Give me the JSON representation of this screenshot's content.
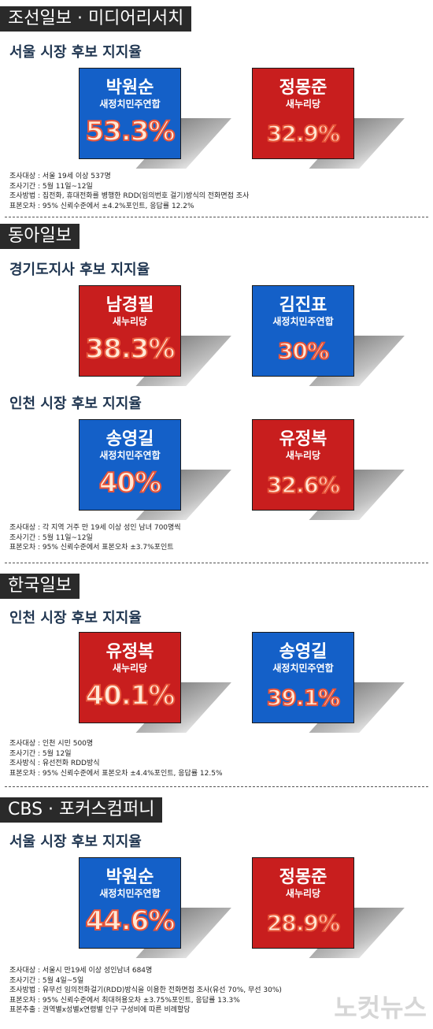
{
  "sections": [
    {
      "header": "조선일보 · 미디어리서치",
      "polls": [
        {
          "title": "서울 시장 후보 지지율",
          "candidates": [
            {
              "name": "박원순",
              "party": "새정치민주연합",
              "pct": "53.3%",
              "value": 53.3,
              "color": "#1460c8"
            },
            {
              "name": "정몽준",
              "party": "새누리당",
              "pct": "32.9%",
              "value": 32.9,
              "color": "#c81e1e"
            }
          ]
        }
      ],
      "notes": [
        "조사대상 : 서울 19세 이상 537명",
        "조사기간 : 5월 11일~12일",
        "조사방법 : 집전화, 휴대전화를 병행한 RDD(임의번호 걸기)방식의 전화면접 조사",
        "표본오차 : 95% 신뢰수준에서 ±4.2%포인트, 응답률 12.2%"
      ]
    },
    {
      "header": "동아일보",
      "polls": [
        {
          "title": "경기도지사 후보 지지율",
          "candidates": [
            {
              "name": "남경필",
              "party": "새누리당",
              "pct": "38.3%",
              "value": 38.3,
              "color": "#c81e1e"
            },
            {
              "name": "김진표",
              "party": "새정치민주연합",
              "pct": "30%",
              "value": 30,
              "color": "#1460c8"
            }
          ]
        },
        {
          "title": "인천 시장 후보 지지율",
          "candidates": [
            {
              "name": "송영길",
              "party": "새정치민주연합",
              "pct": "40%",
              "value": 40,
              "color": "#1460c8"
            },
            {
              "name": "유정복",
              "party": "새누리당",
              "pct": "32.6%",
              "value": 32.6,
              "color": "#c81e1e"
            }
          ]
        }
      ],
      "notes": [
        "조사대상 : 각 지역 거주 만 19세 이상 성인 남녀 700명씩",
        "조사기간 : 5월 11일~12일",
        "표본오차 : 95% 신뢰수준에서 표본오차 ±3.7%포인트"
      ]
    },
    {
      "header": "한국일보",
      "polls": [
        {
          "title": "인천 시장 후보 지지율",
          "candidates": [
            {
              "name": "유정복",
              "party": "새누리당",
              "pct": "40.1%",
              "value": 40.1,
              "color": "#c81e1e"
            },
            {
              "name": "송영길",
              "party": "새정치민주연합",
              "pct": "39.1%",
              "value": 39.1,
              "color": "#1460c8"
            }
          ]
        }
      ],
      "notes": [
        "조사대상 : 인천 시민 500명",
        "조사기간 : 5월 12일",
        "조사방식 : 유선전화 RDD방식",
        "표본오차 : 95% 신뢰수준에서 표본오차 ±4.4%포인트, 응답률 12.5%"
      ]
    },
    {
      "header": "CBS · 포커스컴퍼니",
      "polls": [
        {
          "title": "서울 시장 후보 지지율",
          "candidates": [
            {
              "name": "박원순",
              "party": "새정치민주연합",
              "pct": "44.6%",
              "value": 44.6,
              "color": "#1460c8"
            },
            {
              "name": "정몽준",
              "party": "새누리당",
              "pct": "28.9%",
              "value": 28.9,
              "color": "#c81e1e"
            }
          ]
        }
      ],
      "notes": [
        "조사대상 : 서울시 만19세 이상 성인남녀 684명",
        "조사기간 : 5월 4일~5일",
        "조사방법 : 유무선 임의전화걸기(RDD)방식을 이용한 전화면접 조사(유선 70%, 무선 30%)",
        "표본오차 : 95% 신뢰수준에서 최대허용오차 ±3.75%포인트, 응답률 13.3%",
        "표본추출 : 권역별x성별x연령별 인구 구성비에 따른 비례할당"
      ]
    }
  ],
  "watermark": "노컷뉴스",
  "chart_data": {
    "type": "table",
    "rows": [
      {
        "source": "조선일보 · 미디어리서치",
        "race": "서울 시장",
        "candidate": "박원순",
        "party": "새정치민주연합",
        "value": 53.3
      },
      {
        "source": "조선일보 · 미디어리서치",
        "race": "서울 시장",
        "candidate": "정몽준",
        "party": "새누리당",
        "value": 32.9
      },
      {
        "source": "동아일보",
        "race": "경기도지사",
        "candidate": "남경필",
        "party": "새누리당",
        "value": 38.3
      },
      {
        "source": "동아일보",
        "race": "경기도지사",
        "candidate": "김진표",
        "party": "새정치민주연합",
        "value": 30
      },
      {
        "source": "동아일보",
        "race": "인천 시장",
        "candidate": "송영길",
        "party": "새정치민주연합",
        "value": 40
      },
      {
        "source": "동아일보",
        "race": "인천 시장",
        "candidate": "유정복",
        "party": "새누리당",
        "value": 32.6
      },
      {
        "source": "한국일보",
        "race": "인천 시장",
        "candidate": "유정복",
        "party": "새누리당",
        "value": 40.1
      },
      {
        "source": "한국일보",
        "race": "인천 시장",
        "candidate": "송영길",
        "party": "새정치민주연합",
        "value": 39.1
      },
      {
        "source": "CBS · 포커스컴퍼니",
        "race": "서울 시장",
        "candidate": "박원순",
        "party": "새정치민주연합",
        "value": 44.6
      },
      {
        "source": "CBS · 포커스컴퍼니",
        "race": "서울 시장",
        "candidate": "정몽준",
        "party": "새누리당",
        "value": 28.9
      }
    ]
  }
}
